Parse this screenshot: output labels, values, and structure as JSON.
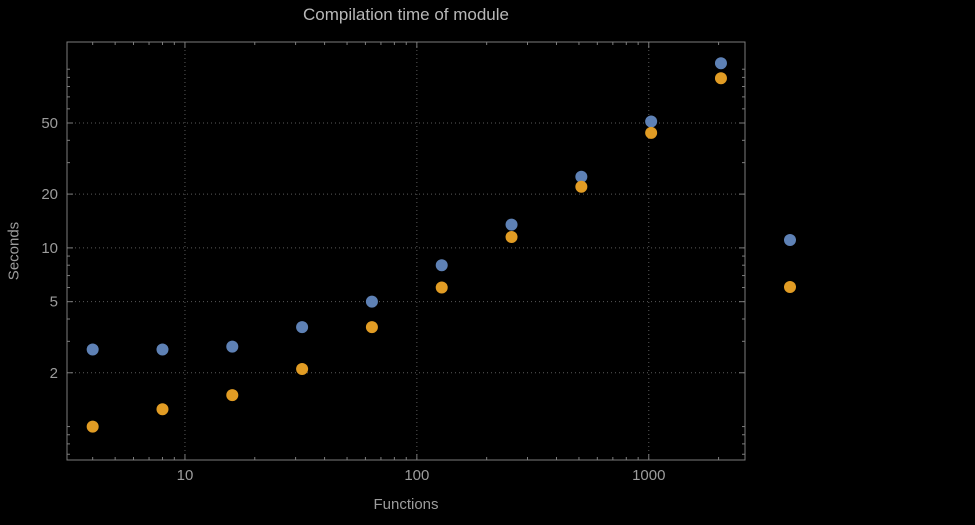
{
  "chart_data": {
    "type": "scatter",
    "title": "Compilation time of module",
    "xlabel": "Functions",
    "ylabel": "Seconds",
    "x_scale": "log",
    "y_scale": "log",
    "xlim": [
      3.1,
      2600
    ],
    "ylim": [
      0.65,
      142
    ],
    "x_ticks": [
      10,
      100,
      1000
    ],
    "y_ticks": [
      2,
      5,
      10,
      20,
      50
    ],
    "grid": true,
    "x": [
      4,
      8,
      16,
      32,
      64,
      128,
      256,
      512,
      1024,
      2048
    ],
    "series": [
      {
        "name": "series-blue",
        "color": "#5e81b5",
        "values": [
          2.7,
          2.7,
          2.8,
          3.6,
          5.0,
          8.0,
          13.5,
          25,
          51,
          108
        ]
      },
      {
        "name": "series-orange",
        "color": "#e19c24",
        "values": [
          1.0,
          1.25,
          1.5,
          2.1,
          3.6,
          6.0,
          11.5,
          22,
          44,
          89
        ]
      }
    ],
    "legend_markers": [
      {
        "name": "series-blue-legend-marker",
        "color": "#5e81b5"
      },
      {
        "name": "series-orange-legend-marker",
        "color": "#e19c24"
      }
    ]
  },
  "colors": {
    "background": "#000000",
    "frame": "#7d7d7d",
    "grid": "#5a5a5a",
    "text": "#9c9c9c",
    "title": "#b8b8b8"
  }
}
